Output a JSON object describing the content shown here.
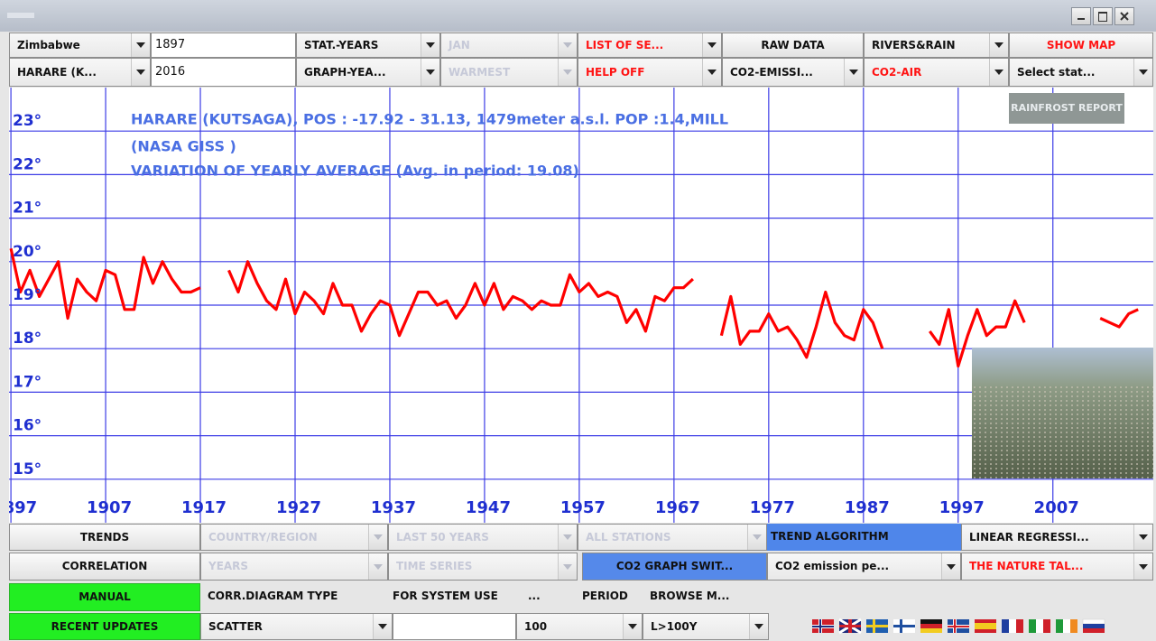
{
  "toolbar": [
    [
      "Zimbabwe",
      "1897",
      "STAT.-YEARS",
      "JAN",
      "LIST OF SE...",
      "RAW DATA",
      "RIVERS&RAIN",
      "SHOW MAP"
    ],
    [
      "HARARE (K...",
      "2016",
      "GRAPH-YEA...",
      "WARMEST",
      "HELP OFF",
      "CO2-EMISSI...",
      "CO2-AIR",
      "Select stat..."
    ]
  ],
  "bottom_panel": [
    [
      "TRENDS",
      "COUNTRY/REGION",
      "LAST 50 YEARS",
      "ALL STATIONS",
      "TREND ALGORITHM",
      "LINEAR REGRESSI..."
    ],
    [
      "CORRELATION",
      "YEARS",
      "TIME SERIES",
      "CO2 GRAPH SWIT...",
      "CO2 emission pe...",
      "THE NATURE TAL..."
    ],
    [
      "MANUAL",
      "CORR.DIAGRAM TYPE",
      "FOR SYSTEM USE",
      "...",
      "PERIOD",
      "BROWSE M..."
    ],
    [
      "RECENT UPDATES",
      "SCATTER",
      "100",
      "L>100Y"
    ]
  ],
  "chart_data": {
    "type": "line",
    "annotations": [
      "HARARE (KUTSAGA), POS : -17.92 - 31.13, 1479meter a.s.l.  POP :1.4,MILL",
      "(NASA GISS )",
      "VARIATION OF YEARLY AVERAGE (Avg. in period: 19.08)"
    ],
    "logo": "RAINFROST REPORT",
    "x": [
      1897,
      1898,
      1899,
      1900,
      1901,
      1902,
      1903,
      1904,
      1905,
      1906,
      1907,
      1908,
      1909,
      1910,
      1911,
      1912,
      1913,
      1914,
      1915,
      1916,
      1917,
      1918,
      1919,
      1920,
      1921,
      1922,
      1923,
      1924,
      1925,
      1926,
      1927,
      1928,
      1929,
      1930,
      1931,
      1932,
      1933,
      1934,
      1935,
      1936,
      1937,
      1938,
      1939,
      1940,
      1941,
      1942,
      1943,
      1944,
      1945,
      1946,
      1947,
      1948,
      1949,
      1950,
      1951,
      1952,
      1953,
      1954,
      1955,
      1956,
      1957,
      1958,
      1959,
      1960,
      1961,
      1962,
      1963,
      1964,
      1965,
      1966,
      1967,
      1968,
      1969,
      1970,
      1971,
      1972,
      1973,
      1974,
      1975,
      1976,
      1977,
      1978,
      1979,
      1980,
      1981,
      1982,
      1983,
      1984,
      1985,
      1986,
      1987,
      1988,
      1989,
      1990,
      1991,
      1992,
      1993,
      1994,
      1995,
      1996,
      1997,
      1998,
      1999,
      2000,
      2001,
      2002,
      2003,
      2004,
      2005,
      2006,
      2007,
      2008,
      2009,
      2010,
      2011,
      2012,
      2013,
      2014,
      2015,
      2016
    ],
    "series": [
      {
        "color": "#ff0000",
        "values": [
          20.3,
          19.3,
          19.8,
          19.2,
          19.6,
          20.0,
          18.7,
          19.6,
          19.3,
          19.1,
          19.8,
          19.7,
          18.9,
          18.9,
          20.1,
          19.5,
          20.0,
          19.6,
          19.3,
          19.3,
          19.4,
          null,
          null,
          19.8,
          19.3,
          20.0,
          19.5,
          19.1,
          18.9,
          19.6,
          18.8,
          19.3,
          19.1,
          18.8,
          19.5,
          19.0,
          19.0,
          18.4,
          18.8,
          19.1,
          19.0,
          18.3,
          18.8,
          19.3,
          19.3,
          19.0,
          19.1,
          18.7,
          19.0,
          19.5,
          19.0,
          19.5,
          18.9,
          19.2,
          19.1,
          18.9,
          19.1,
          19.0,
          19.0,
          19.7,
          19.3,
          19.5,
          19.2,
          19.3,
          19.2,
          18.6,
          18.9,
          18.4,
          19.2,
          19.1,
          19.4,
          19.4,
          19.6,
          null,
          null,
          18.3,
          19.2,
          18.1,
          18.4,
          18.4,
          18.8,
          18.4,
          18.5,
          18.2,
          17.8,
          18.5,
          19.3,
          18.6,
          18.3,
          18.2,
          18.9,
          18.6,
          18.0,
          null,
          null,
          null,
          null,
          18.4,
          18.1,
          18.9,
          17.6,
          18.3,
          18.9,
          18.3,
          18.5,
          18.5,
          19.1,
          18.6,
          null,
          null,
          null,
          null,
          null,
          null,
          null,
          18.7,
          18.6,
          18.5,
          18.8,
          18.9
        ]
      }
    ],
    "xlim": [
      1896.8,
      2017.6
    ],
    "xticks": [
      1897,
      1907,
      1917,
      1927,
      1937,
      1947,
      1957,
      1967,
      1977,
      1987,
      1997,
      2007
    ],
    "ylim": [
      14,
      24
    ],
    "yticks": [
      {
        "value": 15,
        "label": "15°"
      },
      {
        "value": 16,
        "label": "16°"
      },
      {
        "value": 17,
        "label": "17°"
      },
      {
        "value": 18,
        "label": "18°"
      },
      {
        "value": 19,
        "label": "19°"
      },
      {
        "value": 20,
        "label": "20°"
      },
      {
        "value": 21,
        "label": "21°"
      },
      {
        "value": 22,
        "label": "22°"
      },
      {
        "value": 23,
        "label": "23°"
      }
    ],
    "grid": true,
    "grid_color": "#3c3ce6",
    "axis_label_color": "#1f2fd0",
    "annotation_color": "#4a6fe3"
  }
}
